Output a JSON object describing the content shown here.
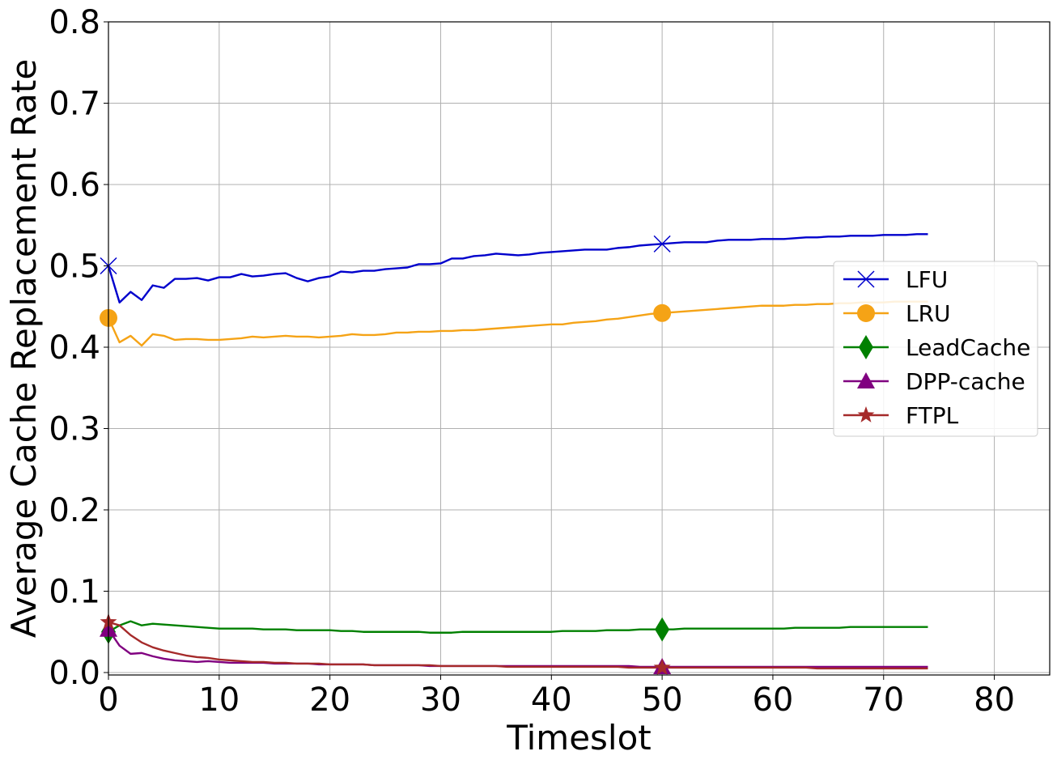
{
  "chart_data": {
    "type": "line",
    "title": "",
    "xlabel": "Timeslot",
    "ylabel": "Average Cache Replacement Rate",
    "xlim": [
      0,
      85
    ],
    "ylim": [
      -0.003,
      0.8
    ],
    "x_ticks": [
      0,
      10,
      20,
      30,
      40,
      50,
      60,
      70,
      80
    ],
    "y_ticks": [
      0.0,
      0.1,
      0.2,
      0.3,
      0.4,
      0.5,
      0.6,
      0.7,
      0.8
    ],
    "x_tick_labels": [
      "0",
      "10",
      "20",
      "30",
      "40",
      "50",
      "60",
      "70",
      "80"
    ],
    "y_tick_labels": [
      "0.0",
      "0.1",
      "0.2",
      "0.3",
      "0.4",
      "0.5",
      "0.6",
      "0.7",
      "0.8"
    ],
    "grid": true,
    "legend_position": "center-right",
    "marker_every": 50,
    "x": [
      0,
      1,
      2,
      3,
      4,
      5,
      6,
      7,
      8,
      9,
      10,
      11,
      12,
      13,
      14,
      15,
      16,
      17,
      18,
      19,
      20,
      21,
      22,
      23,
      24,
      25,
      26,
      27,
      28,
      29,
      30,
      31,
      32,
      33,
      34,
      35,
      36,
      37,
      38,
      39,
      40,
      41,
      42,
      43,
      44,
      45,
      46,
      47,
      48,
      49,
      50,
      51,
      52,
      53,
      54,
      55,
      56,
      57,
      58,
      59,
      60,
      61,
      62,
      63,
      64,
      65,
      66,
      67,
      68,
      69,
      70,
      71,
      72,
      73,
      74
    ],
    "series": [
      {
        "name": "LFU",
        "color": "#0000cc",
        "marker": "x-icon",
        "values": [
          0.5,
          0.455,
          0.468,
          0.458,
          0.476,
          0.473,
          0.484,
          0.484,
          0.485,
          0.482,
          0.486,
          0.486,
          0.49,
          0.487,
          0.488,
          0.49,
          0.491,
          0.485,
          0.481,
          0.485,
          0.487,
          0.493,
          0.492,
          0.494,
          0.494,
          0.496,
          0.497,
          0.498,
          0.502,
          0.502,
          0.503,
          0.509,
          0.509,
          0.512,
          0.513,
          0.515,
          0.514,
          0.513,
          0.514,
          0.516,
          0.517,
          0.518,
          0.519,
          0.52,
          0.52,
          0.52,
          0.522,
          0.523,
          0.525,
          0.526,
          0.527,
          0.528,
          0.529,
          0.529,
          0.529,
          0.531,
          0.532,
          0.532,
          0.532,
          0.533,
          0.533,
          0.533,
          0.534,
          0.535,
          0.535,
          0.536,
          0.536,
          0.537,
          0.537,
          0.537,
          0.538,
          0.538,
          0.538,
          0.539,
          0.539
        ]
      },
      {
        "name": "LRU",
        "color": "#f5a316",
        "marker": "circle-icon",
        "values": [
          0.436,
          0.406,
          0.414,
          0.402,
          0.416,
          0.414,
          0.409,
          0.41,
          0.41,
          0.409,
          0.409,
          0.41,
          0.411,
          0.413,
          0.412,
          0.413,
          0.414,
          0.413,
          0.413,
          0.412,
          0.413,
          0.414,
          0.416,
          0.415,
          0.415,
          0.416,
          0.418,
          0.418,
          0.419,
          0.419,
          0.42,
          0.42,
          0.421,
          0.421,
          0.422,
          0.423,
          0.424,
          0.425,
          0.426,
          0.427,
          0.428,
          0.428,
          0.43,
          0.431,
          0.432,
          0.434,
          0.435,
          0.437,
          0.439,
          0.441,
          0.442,
          0.443,
          0.444,
          0.445,
          0.446,
          0.447,
          0.448,
          0.449,
          0.45,
          0.451,
          0.451,
          0.451,
          0.452,
          0.452,
          0.453,
          0.453,
          0.454,
          0.454,
          0.455,
          0.455,
          0.455,
          0.456,
          0.456,
          0.456,
          0.456
        ]
      },
      {
        "name": "LeadCache",
        "color": "#008000",
        "marker": "diamond-icon",
        "values": [
          0.05,
          0.058,
          0.063,
          0.058,
          0.06,
          0.059,
          0.058,
          0.057,
          0.056,
          0.055,
          0.054,
          0.054,
          0.054,
          0.054,
          0.053,
          0.053,
          0.053,
          0.052,
          0.052,
          0.052,
          0.052,
          0.051,
          0.051,
          0.05,
          0.05,
          0.05,
          0.05,
          0.05,
          0.05,
          0.049,
          0.049,
          0.049,
          0.05,
          0.05,
          0.05,
          0.05,
          0.05,
          0.05,
          0.05,
          0.05,
          0.05,
          0.051,
          0.051,
          0.051,
          0.051,
          0.052,
          0.052,
          0.052,
          0.053,
          0.053,
          0.053,
          0.053,
          0.054,
          0.054,
          0.054,
          0.054,
          0.054,
          0.054,
          0.054,
          0.054,
          0.054,
          0.054,
          0.055,
          0.055,
          0.055,
          0.055,
          0.055,
          0.056,
          0.056,
          0.056,
          0.056,
          0.056,
          0.056,
          0.056,
          0.056
        ]
      },
      {
        "name": "DPP-cache",
        "color": "#800080",
        "marker": "triangle-icon",
        "values": [
          0.053,
          0.033,
          0.023,
          0.024,
          0.02,
          0.017,
          0.015,
          0.014,
          0.013,
          0.014,
          0.013,
          0.012,
          0.012,
          0.012,
          0.012,
          0.011,
          0.011,
          0.011,
          0.011,
          0.01,
          0.01,
          0.01,
          0.01,
          0.01,
          0.009,
          0.009,
          0.009,
          0.009,
          0.009,
          0.008,
          0.008,
          0.008,
          0.008,
          0.008,
          0.008,
          0.008,
          0.008,
          0.008,
          0.008,
          0.008,
          0.008,
          0.008,
          0.008,
          0.008,
          0.008,
          0.008,
          0.008,
          0.008,
          0.007,
          0.007,
          0.007,
          0.007,
          0.007,
          0.007,
          0.007,
          0.007,
          0.007,
          0.007,
          0.007,
          0.007,
          0.007,
          0.007,
          0.007,
          0.007,
          0.007,
          0.007,
          0.007,
          0.007,
          0.007,
          0.007,
          0.007,
          0.007,
          0.007,
          0.007,
          0.007
        ]
      },
      {
        "name": "FTPL",
        "color": "#a52a2a",
        "marker": "star-icon",
        "values": [
          0.062,
          0.058,
          0.046,
          0.037,
          0.031,
          0.027,
          0.024,
          0.021,
          0.019,
          0.018,
          0.016,
          0.015,
          0.014,
          0.013,
          0.013,
          0.012,
          0.012,
          0.011,
          0.011,
          0.011,
          0.01,
          0.01,
          0.01,
          0.01,
          0.009,
          0.009,
          0.009,
          0.009,
          0.009,
          0.009,
          0.008,
          0.008,
          0.008,
          0.008,
          0.008,
          0.008,
          0.007,
          0.007,
          0.007,
          0.007,
          0.007,
          0.007,
          0.007,
          0.007,
          0.007,
          0.007,
          0.007,
          0.006,
          0.006,
          0.006,
          0.006,
          0.006,
          0.006,
          0.006,
          0.006,
          0.006,
          0.006,
          0.006,
          0.006,
          0.006,
          0.006,
          0.006,
          0.006,
          0.006,
          0.005,
          0.005,
          0.005,
          0.005,
          0.005,
          0.005,
          0.005,
          0.005,
          0.005,
          0.005,
          0.005
        ]
      }
    ]
  }
}
